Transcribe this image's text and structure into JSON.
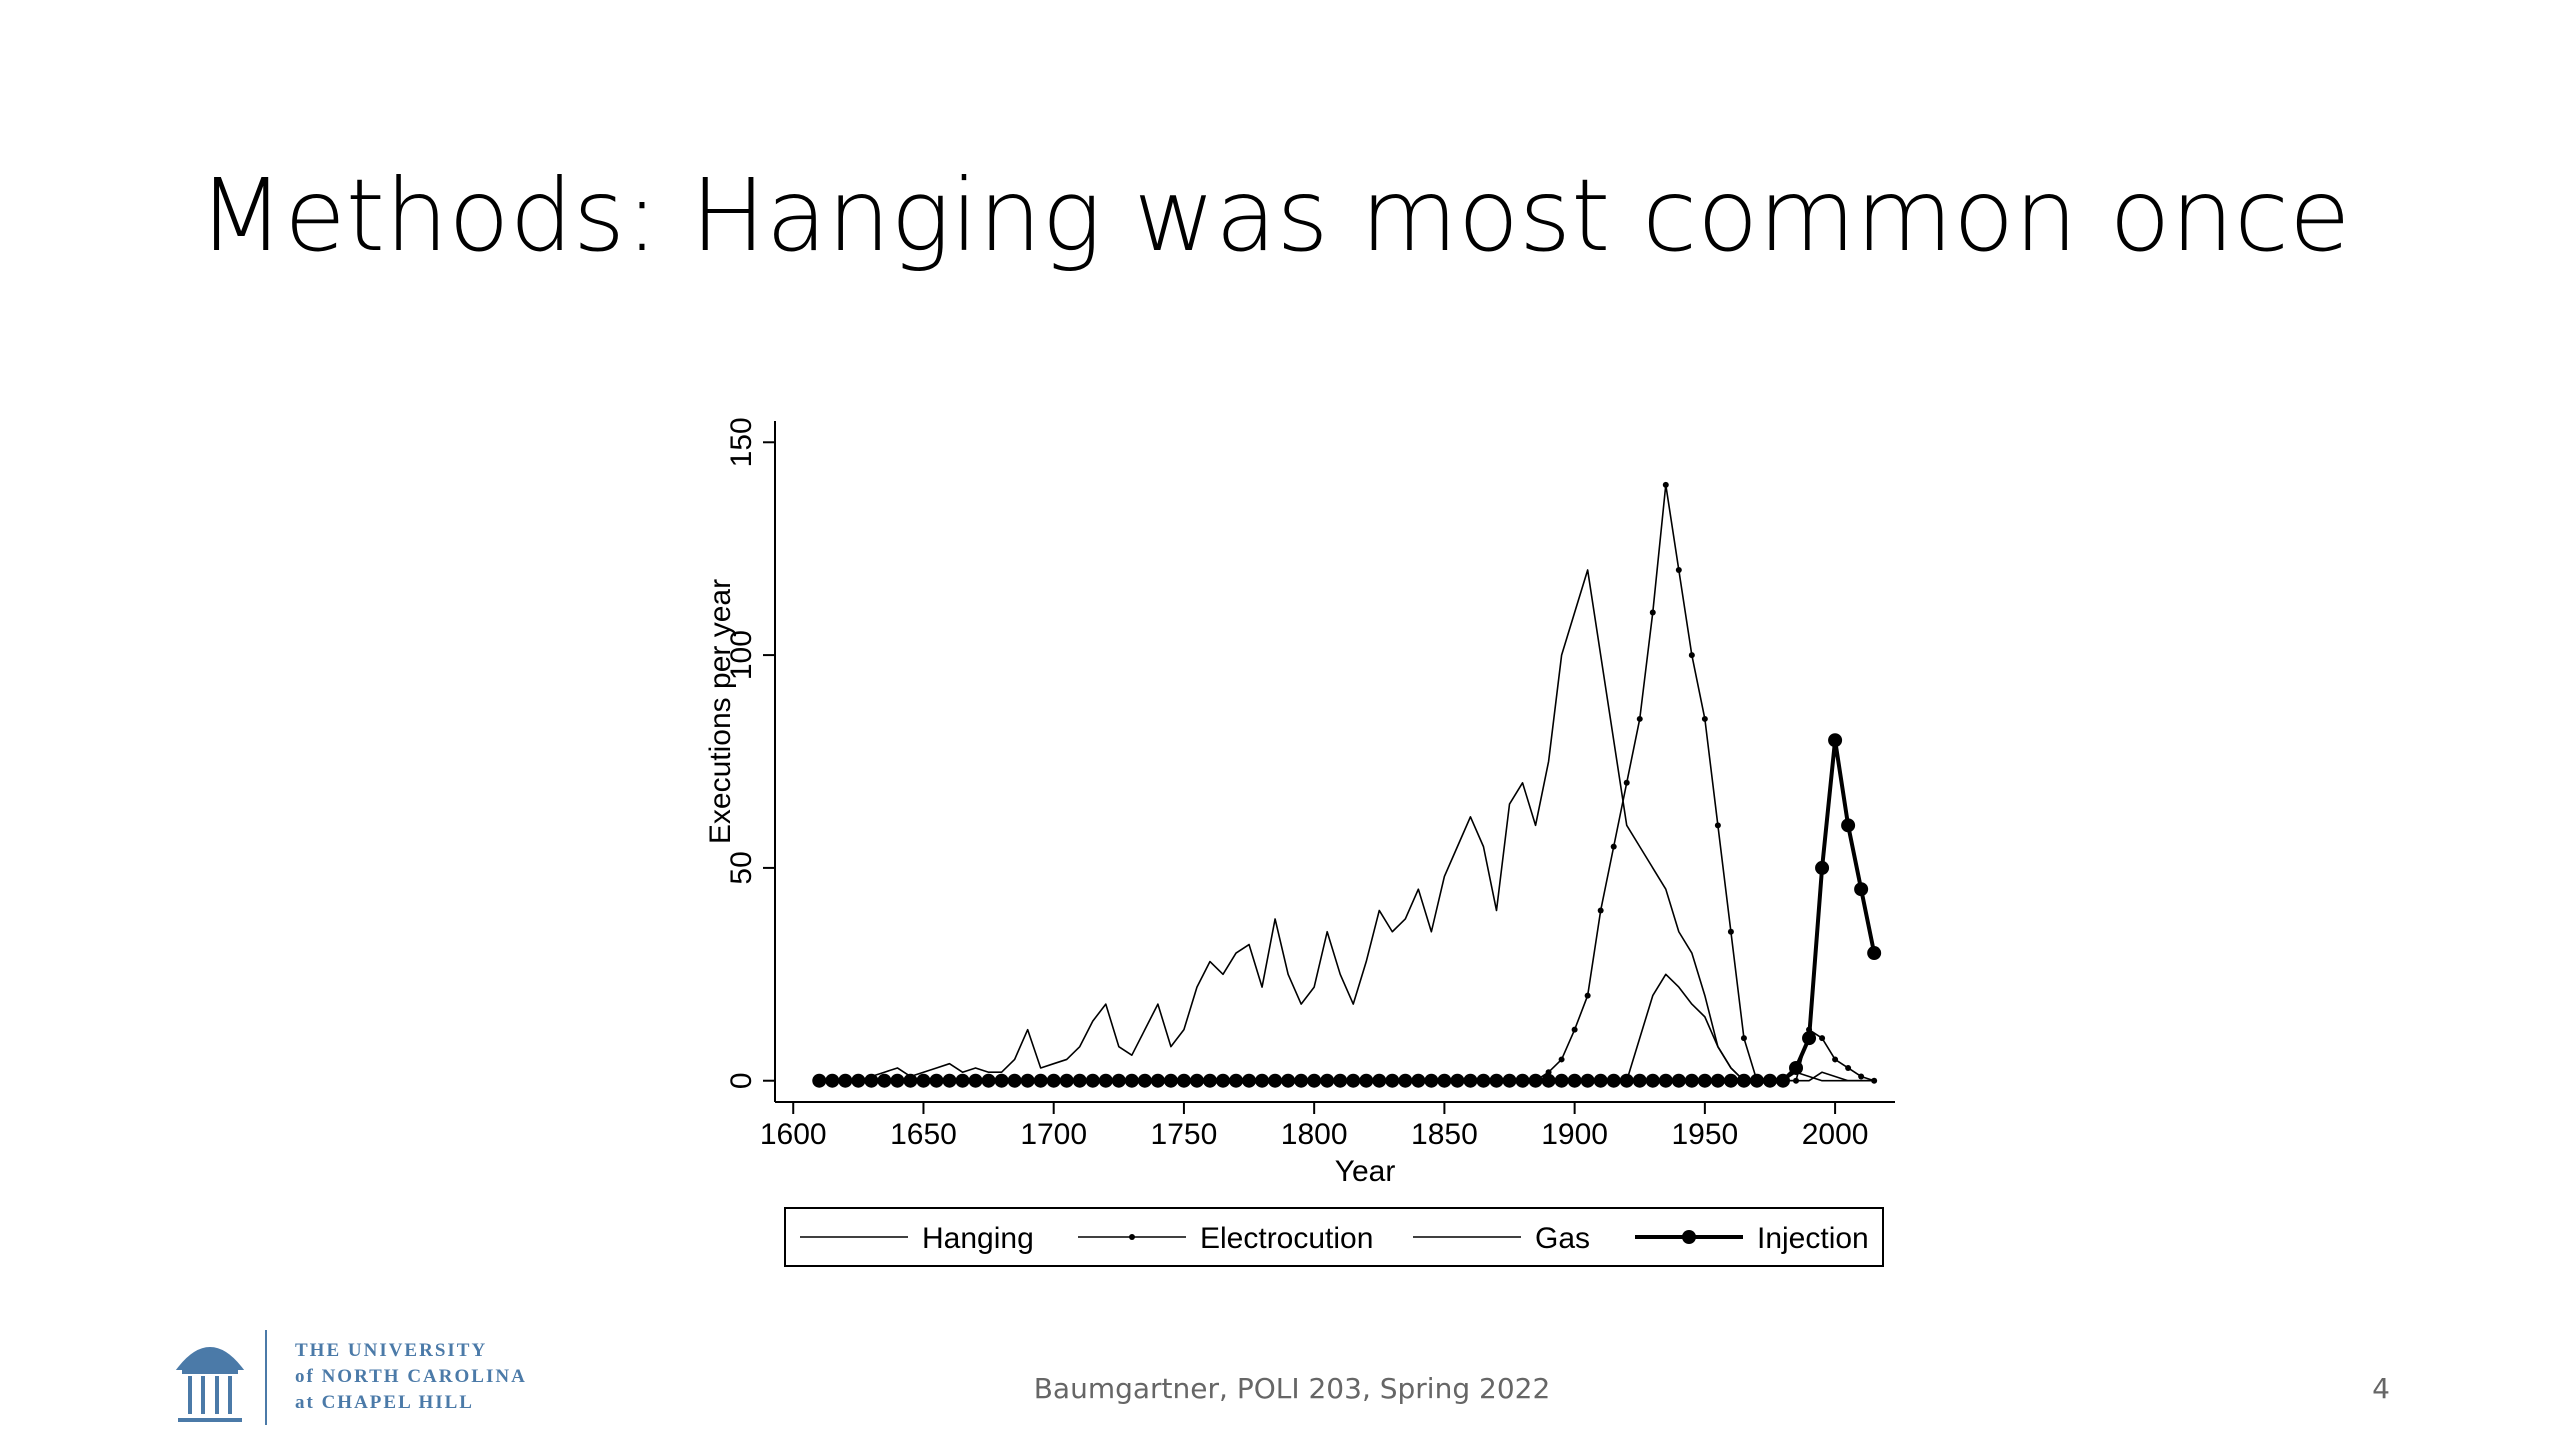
{
  "slide": {
    "title": "Methods: Hanging was most common once",
    "footer": "Baumgartner, POLI 203, Spring 2022",
    "page_number": "4",
    "logo_lines": [
      "THE UNIVERSITY",
      "of NORTH CAROLINA",
      "at CHAPEL HILL"
    ]
  },
  "chart_data": {
    "type": "line",
    "x_label": "Year",
    "y_label": "Executions per year",
    "x": [
      1610,
      1615,
      1620,
      1625,
      1630,
      1635,
      1640,
      1645,
      1650,
      1655,
      1660,
      1665,
      1670,
      1675,
      1680,
      1685,
      1690,
      1695,
      1700,
      1705,
      1710,
      1715,
      1720,
      1725,
      1730,
      1735,
      1740,
      1745,
      1750,
      1755,
      1760,
      1765,
      1770,
      1775,
      1780,
      1785,
      1790,
      1795,
      1800,
      1805,
      1810,
      1815,
      1820,
      1825,
      1830,
      1835,
      1840,
      1845,
      1850,
      1855,
      1860,
      1865,
      1870,
      1875,
      1880,
      1885,
      1890,
      1895,
      1900,
      1905,
      1910,
      1915,
      1920,
      1925,
      1930,
      1935,
      1940,
      1945,
      1950,
      1955,
      1960,
      1965,
      1970,
      1975,
      1980,
      1985,
      1990,
      1995,
      2000,
      2005,
      2010,
      2015
    ],
    "series": [
      {
        "name": "Hanging",
        "color": "#000000",
        "line_width": 1.6,
        "marker_size": 0,
        "values": [
          0,
          0,
          0,
          0,
          1,
          2,
          3,
          1,
          2,
          3,
          4,
          2,
          3,
          2,
          2,
          5,
          12,
          3,
          4,
          5,
          8,
          14,
          18,
          8,
          6,
          12,
          18,
          8,
          12,
          22,
          28,
          25,
          30,
          32,
          22,
          38,
          25,
          18,
          22,
          35,
          25,
          18,
          28,
          40,
          35,
          38,
          45,
          35,
          48,
          55,
          62,
          55,
          40,
          65,
          70,
          60,
          75,
          100,
          110,
          120,
          100,
          80,
          60,
          55,
          50,
          45,
          35,
          30,
          20,
          8,
          3,
          0,
          0,
          0,
          0,
          0,
          0,
          2,
          1,
          0,
          0,
          0
        ]
      },
      {
        "name": "Electrocution",
        "color": "#000000",
        "line_width": 1.6,
        "marker_size": 3,
        "values": [
          0,
          0,
          0,
          0,
          0,
          0,
          0,
          0,
          0,
          0,
          0,
          0,
          0,
          0,
          0,
          0,
          0,
          0,
          0,
          0,
          0,
          0,
          0,
          0,
          0,
          0,
          0,
          0,
          0,
          0,
          0,
          0,
          0,
          0,
          0,
          0,
          0,
          0,
          0,
          0,
          0,
          0,
          0,
          0,
          0,
          0,
          0,
          0,
          0,
          0,
          0,
          0,
          0,
          0,
          0,
          0,
          2,
          5,
          12,
          20,
          40,
          55,
          70,
          85,
          110,
          140,
          120,
          100,
          85,
          60,
          35,
          10,
          0,
          0,
          0,
          0,
          12,
          10,
          5,
          3,
          1,
          0
        ]
      },
      {
        "name": "Gas",
        "color": "#000000",
        "line_width": 1.6,
        "marker_size": 0,
        "values": [
          0,
          0,
          0,
          0,
          0,
          0,
          0,
          0,
          0,
          0,
          0,
          0,
          0,
          0,
          0,
          0,
          0,
          0,
          0,
          0,
          0,
          0,
          0,
          0,
          0,
          0,
          0,
          0,
          0,
          0,
          0,
          0,
          0,
          0,
          0,
          0,
          0,
          0,
          0,
          0,
          0,
          0,
          0,
          0,
          0,
          0,
          0,
          0,
          0,
          0,
          0,
          0,
          0,
          0,
          0,
          0,
          0,
          0,
          0,
          0,
          0,
          0,
          0,
          10,
          20,
          25,
          22,
          18,
          15,
          8,
          3,
          0,
          0,
          0,
          0,
          2,
          1,
          0,
          0,
          0,
          0,
          0
        ]
      },
      {
        "name": "Injection",
        "color": "#000000",
        "line_width": 4,
        "marker_size": 7,
        "values": [
          0,
          0,
          0,
          0,
          0,
          0,
          0,
          0,
          0,
          0,
          0,
          0,
          0,
          0,
          0,
          0,
          0,
          0,
          0,
          0,
          0,
          0,
          0,
          0,
          0,
          0,
          0,
          0,
          0,
          0,
          0,
          0,
          0,
          0,
          0,
          0,
          0,
          0,
          0,
          0,
          0,
          0,
          0,
          0,
          0,
          0,
          0,
          0,
          0,
          0,
          0,
          0,
          0,
          0,
          0,
          0,
          0,
          0,
          0,
          0,
          0,
          0,
          0,
          0,
          0,
          0,
          0,
          0,
          0,
          0,
          0,
          0,
          0,
          0,
          0,
          3,
          10,
          50,
          80,
          60,
          45,
          30
        ]
      }
    ],
    "xlim": [
      1593,
      2023
    ],
    "xticks": [
      1600,
      1650,
      1700,
      1750,
      1800,
      1850,
      1900,
      1950,
      2000
    ],
    "ylim": [
      -5,
      155
    ],
    "yticks": [
      0,
      50,
      100,
      150
    ],
    "grid": false,
    "legend": "bottom"
  }
}
